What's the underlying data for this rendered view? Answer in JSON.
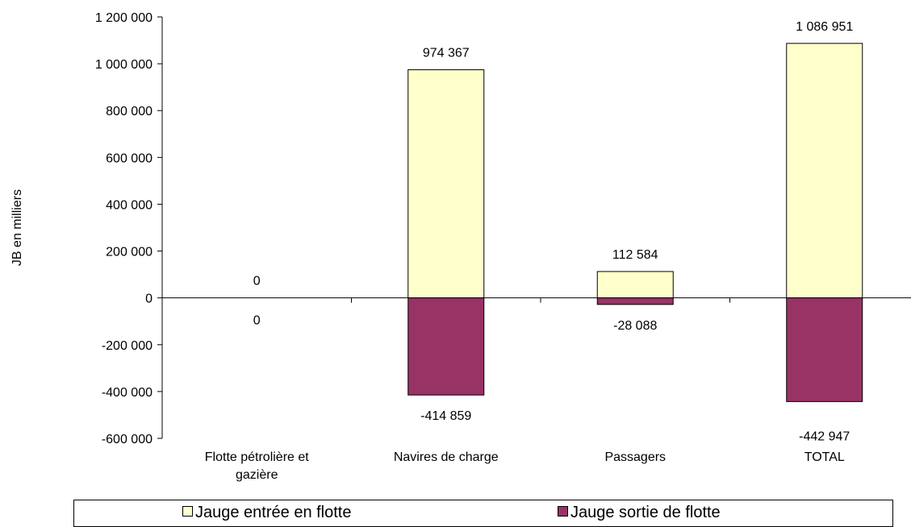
{
  "chart_data": {
    "type": "bar",
    "categories": [
      "Flotte pétrolière et gazière",
      "Navires de charge",
      "Passagers",
      "TOTAL"
    ],
    "category_lines": [
      [
        "Flotte pétrolière et",
        "gazière"
      ],
      [
        "Navires de charge"
      ],
      [
        "Passagers"
      ],
      [
        "TOTAL"
      ]
    ],
    "series": [
      {
        "name": "Jauge entrée en flotte",
        "values": [
          0,
          974367,
          112584,
          1086951
        ],
        "labels": [
          "0",
          "974 367",
          "112 584",
          "1 086 951"
        ],
        "color": "#FFFFCC"
      },
      {
        "name": "Jauge sortie de flotte",
        "values": [
          0,
          -414859,
          -28088,
          -442947
        ],
        "labels": [
          "0",
          "-414 859",
          "-28 088",
          "-442 947"
        ],
        "color": "#993366"
      }
    ],
    "ylabel": "JB en milliers",
    "ylim": [
      -600000,
      1200000
    ],
    "yticks": [
      1200000,
      1000000,
      800000,
      600000,
      400000,
      200000,
      0,
      -200000,
      -400000,
      -600000
    ],
    "ytick_labels": [
      "1 200 000",
      "1 000 000",
      "800 000",
      "600 000",
      "400 000",
      "200 000",
      "0",
      "-200 000",
      "-400 000",
      "-600 000"
    ],
    "grid": false,
    "legend_position": "bottom",
    "stacked": true
  },
  "legend": {
    "items": [
      {
        "label": "Jauge entrée en flotte",
        "color": "#FFFFCC"
      },
      {
        "label": "Jauge sortie de flotte",
        "color": "#993366"
      }
    ]
  }
}
